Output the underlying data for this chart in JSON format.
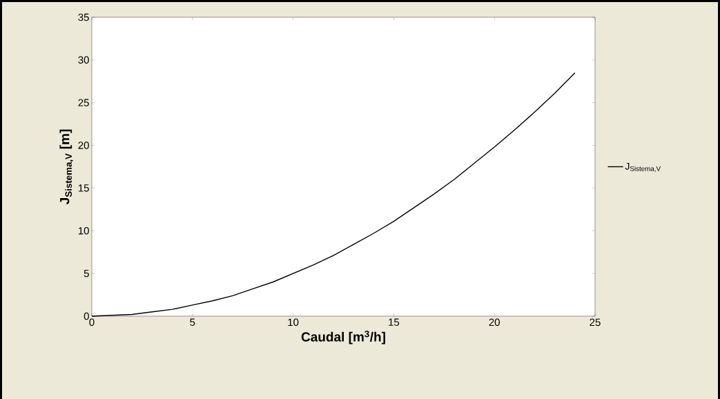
{
  "chart_data": {
    "type": "line",
    "xlabel": "Caudal  [m$^{3}$/h]",
    "ylabel": "J$_{Sistema,V}$  [m]",
    "x": [
      0,
      1,
      2,
      3,
      4,
      5,
      6,
      7,
      8,
      9,
      10,
      11,
      12,
      13,
      14,
      15,
      16,
      17,
      18,
      19,
      20,
      21,
      22,
      23,
      24
    ],
    "series": [
      {
        "name": "J$_{Sistema,V}$",
        "color": "#000000",
        "values": [
          0,
          0.1,
          0.2,
          0.5,
          0.8,
          1.3,
          1.8,
          2.4,
          3.2,
          4.0,
          5.0,
          6.0,
          7.1,
          8.4,
          9.7,
          11.1,
          12.7,
          14.3,
          16.0,
          17.9,
          19.8,
          21.8,
          23.9,
          26.1,
          28.5
        ]
      }
    ],
    "xlim": [
      0,
      25
    ],
    "ylim": [
      0,
      35
    ],
    "xticks": [
      0,
      5,
      10,
      15,
      20,
      25
    ],
    "yticks": [
      0,
      5,
      10,
      15,
      20,
      25,
      30,
      35
    ],
    "legend": "right",
    "grid": false,
    "marker": "none",
    "line_style": "solid"
  }
}
